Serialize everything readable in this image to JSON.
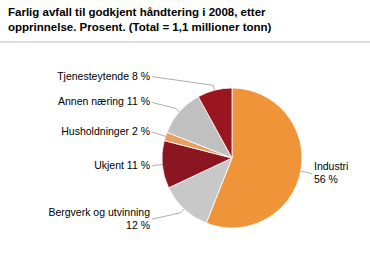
{
  "chart_data": {
    "type": "pie",
    "title": "Farlig avfall til godkjent håndtering i 2008, etter\nopprinnelse. Prosent. (Total = 1,1 millioner tonn)",
    "categories": [
      "Industri\n56 %",
      "Bergverk og utvinning\n12 %",
      "Ukjent 11 %",
      "Husholdninger 2 %",
      "Annen næring 11 %",
      "Tjenesteytende 8 %"
    ],
    "values": [
      56,
      12,
      11,
      2,
      11,
      8
    ],
    "colors": [
      "#F0943A",
      "#C8C8C8",
      "#8B1520",
      "#E8A060",
      "#C0C0C0",
      "#9B1520"
    ]
  }
}
